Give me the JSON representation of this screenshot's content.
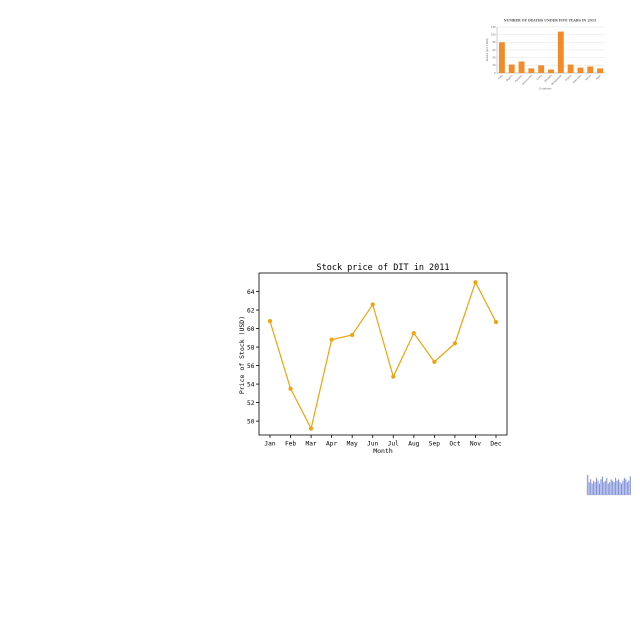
{
  "chart_data": [
    {
      "type": "line",
      "title": "Stock price of DIT in 2011",
      "xlabel": "Month",
      "ylabel": "Price of Stock (USD)",
      "categories": [
        "Jan",
        "Feb",
        "Mar",
        "Apr",
        "May",
        "Jun",
        "Jul",
        "Aug",
        "Sep",
        "Oct",
        "Nov",
        "Dec"
      ],
      "series": [
        {
          "values": [
            60.8,
            53.5,
            49.2,
            58.8,
            59.3,
            62.6,
            54.8,
            59.5,
            56.4,
            58.4,
            65.0,
            60.7
          ]
        }
      ],
      "ylim": [
        48.5,
        66.0
      ],
      "yticks": [
        50,
        52,
        54,
        56,
        58,
        60,
        62,
        64
      ],
      "grid": false,
      "colors": {
        "line": "#f0a30a",
        "marker": "#f0a30a",
        "axes": "#000000"
      }
    },
    {
      "type": "bar",
      "title": "NUMBER OF DEATHS UNDER FIVE YEARS IN 2013",
      "xlabel": "Countries",
      "ylabel": "Deaths (per 1,000)",
      "categories": [
        "India",
        "Nigeria",
        "Pakistan",
        "Democratic",
        "China",
        "Ethiopia",
        "Bangladesh",
        "Angola",
        "Indonesia",
        "Kenya",
        "Niger"
      ],
      "values": [
        80,
        22,
        30,
        12,
        20,
        9,
        108,
        22,
        14,
        17,
        12
      ],
      "ylim": [
        0,
        120
      ],
      "colors": {
        "bar": "#f28c28"
      }
    },
    {
      "type": "bar",
      "values": [
        14,
        9,
        11,
        8,
        10,
        9,
        12,
        10,
        8,
        11,
        13,
        9,
        10,
        12,
        8,
        9,
        11,
        10,
        9,
        12,
        10,
        11,
        9,
        8,
        10,
        12,
        11,
        9,
        10,
        13
      ],
      "colors": {
        "bar": "#7f8fd8"
      }
    }
  ]
}
